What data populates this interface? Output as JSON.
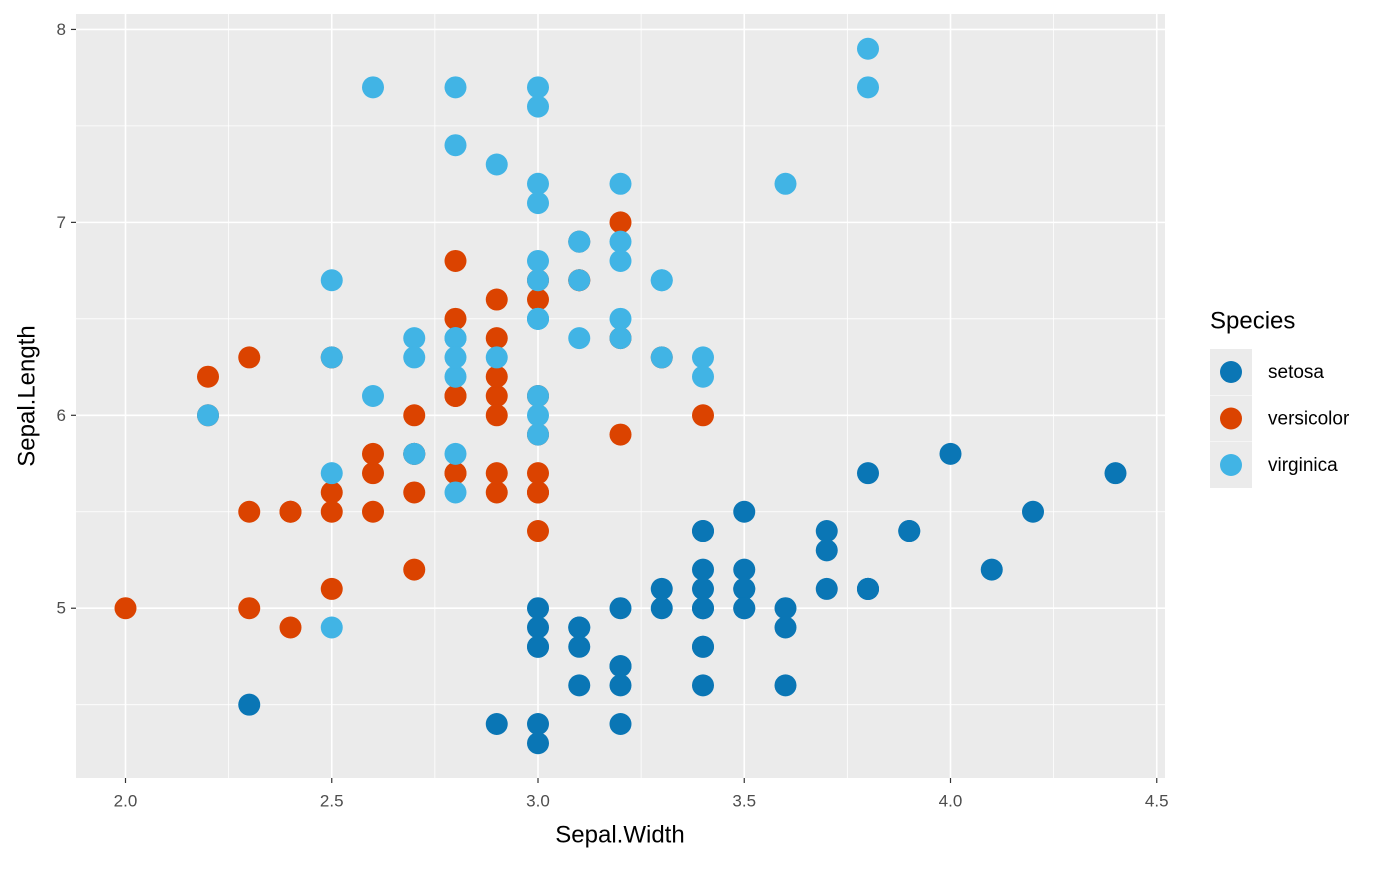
{
  "chart_data": {
    "type": "scatter",
    "x_label": "Sepal.Width",
    "y_label": "Sepal.Length",
    "legend_title": "Species",
    "legend_position": "right",
    "grid": true,
    "xlim": [
      1.88,
      4.52
    ],
    "ylim": [
      4.12,
      8.08
    ],
    "xticks": [
      {
        "value": 2,
        "label": "2.0"
      },
      2.5,
      {
        "value": 3,
        "label": "3.0"
      },
      3.5,
      {
        "value": 4,
        "label": "4.0"
      },
      4.5
    ],
    "yticks": [
      5,
      6,
      7,
      8
    ],
    "series": [
      {
        "name": "setosa",
        "color": "#0a76b5",
        "x": [
          3.5,
          3.0,
          3.2,
          3.1,
          3.6,
          3.9,
          3.4,
          3.4,
          2.9,
          3.1,
          3.7,
          3.4,
          3.0,
          3.0,
          4.0,
          4.4,
          3.9,
          3.5,
          3.8,
          3.8,
          3.4,
          3.7,
          3.6,
          3.3,
          3.4,
          3.0,
          3.4,
          3.5,
          3.4,
          3.2,
          3.1,
          3.4,
          4.1,
          4.2,
          3.1,
          3.2,
          3.5,
          3.6,
          3.0,
          3.4,
          3.5,
          2.3,
          3.2,
          3.5,
          3.8,
          3.0,
          3.8,
          3.2,
          3.7,
          3.3
        ],
        "y": [
          5.1,
          4.9,
          4.7,
          4.6,
          5.0,
          5.4,
          4.6,
          5.0,
          4.4,
          4.9,
          5.4,
          4.8,
          4.8,
          4.3,
          5.8,
          5.7,
          5.4,
          5.1,
          5.7,
          5.1,
          5.4,
          5.1,
          4.6,
          5.1,
          4.8,
          5.0,
          5.0,
          5.2,
          5.2,
          4.7,
          4.8,
          5.4,
          5.2,
          5.5,
          4.9,
          5.0,
          5.5,
          4.9,
          4.4,
          5.1,
          5.0,
          4.5,
          4.4,
          5.0,
          5.1,
          4.8,
          5.1,
          4.6,
          5.3,
          5.0
        ]
      },
      {
        "name": "versicolor",
        "color": "#db4300",
        "x": [
          3.2,
          3.2,
          3.1,
          2.3,
          2.8,
          2.8,
          3.3,
          2.4,
          2.9,
          2.7,
          2.0,
          3.0,
          2.2,
          2.9,
          2.9,
          3.1,
          3.0,
          2.7,
          2.2,
          2.5,
          3.2,
          2.8,
          2.5,
          2.8,
          2.9,
          3.0,
          2.8,
          3.0,
          2.9,
          2.6,
          2.4,
          2.4,
          2.7,
          2.7,
          3.0,
          3.4,
          3.1,
          2.3,
          3.0,
          2.5,
          2.6,
          3.0,
          2.6,
          2.3,
          2.7,
          3.0,
          2.9,
          2.9,
          2.5,
          2.8
        ],
        "y": [
          7.0,
          6.4,
          6.9,
          5.5,
          6.5,
          5.7,
          6.3,
          4.9,
          6.6,
          5.2,
          5.0,
          5.9,
          6.0,
          6.1,
          5.6,
          6.7,
          5.6,
          5.8,
          6.2,
          5.6,
          5.9,
          6.1,
          6.3,
          6.1,
          6.4,
          6.6,
          6.8,
          6.7,
          6.0,
          5.7,
          5.5,
          5.5,
          5.8,
          6.0,
          5.4,
          6.0,
          6.7,
          6.3,
          5.6,
          5.5,
          5.5,
          6.1,
          5.8,
          5.0,
          5.6,
          5.7,
          5.7,
          6.2,
          5.1,
          5.7
        ]
      },
      {
        "name": "virginica",
        "color": "#41b4e5",
        "x": [
          3.3,
          2.7,
          3.0,
          2.9,
          3.0,
          3.0,
          2.5,
          2.9,
          2.5,
          3.6,
          3.2,
          2.7,
          3.0,
          2.5,
          2.8,
          3.2,
          3.0,
          3.8,
          2.6,
          2.2,
          3.2,
          2.8,
          2.8,
          2.7,
          3.3,
          3.2,
          2.8,
          3.0,
          2.8,
          3.0,
          2.8,
          3.8,
          2.8,
          2.8,
          2.6,
          3.0,
          3.4,
          3.1,
          3.0,
          3.1,
          3.1,
          3.1,
          2.7,
          3.2,
          3.3,
          3.0,
          2.5,
          3.0,
          3.4,
          3.0
        ],
        "y": [
          6.3,
          5.8,
          7.1,
          6.3,
          6.5,
          7.6,
          4.9,
          7.3,
          6.7,
          7.2,
          6.5,
          6.4,
          6.8,
          5.7,
          5.8,
          6.4,
          6.5,
          7.7,
          7.7,
          6.0,
          6.9,
          5.6,
          7.7,
          6.3,
          6.7,
          7.2,
          6.2,
          6.1,
          6.4,
          7.2,
          7.4,
          7.9,
          6.4,
          6.3,
          6.1,
          7.7,
          6.3,
          6.4,
          6.0,
          6.9,
          6.7,
          6.9,
          5.8,
          6.8,
          6.7,
          6.7,
          6.3,
          6.5,
          6.2,
          5.9
        ]
      }
    ]
  }
}
